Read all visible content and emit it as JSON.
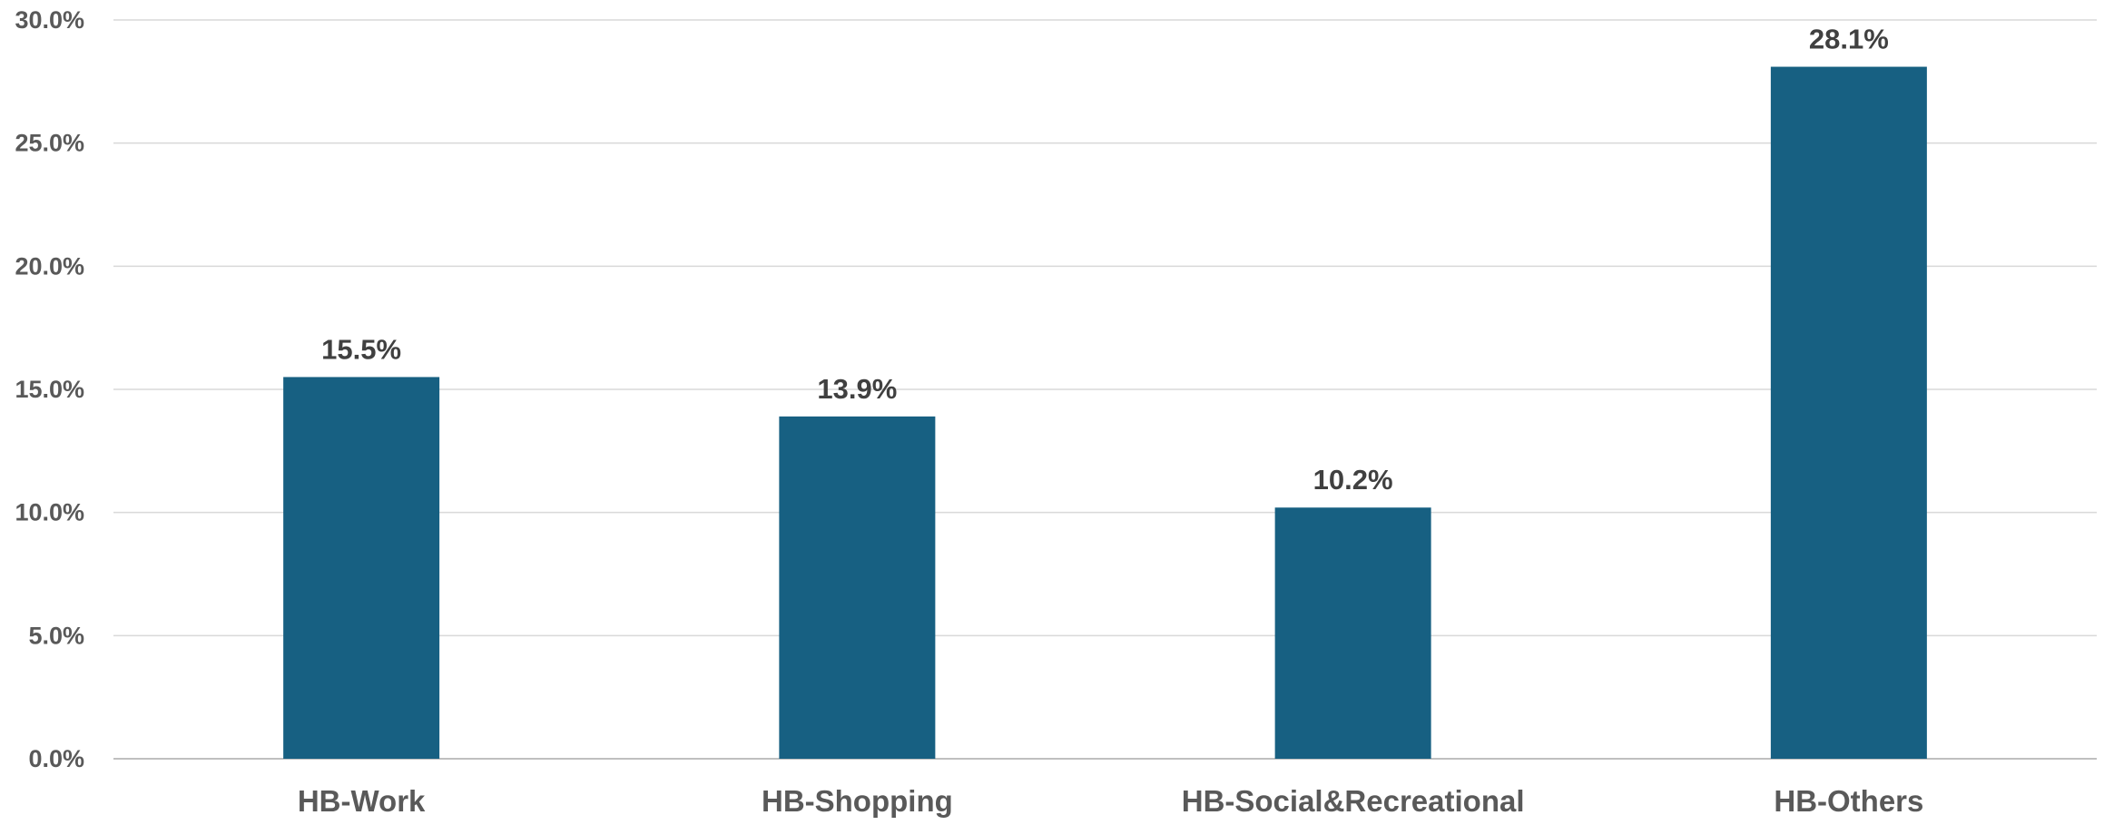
{
  "chart_data": {
    "type": "bar",
    "categories": [
      "HB-Work",
      "HB-Shopping",
      "HB-Social&Recreational",
      "HB-Others"
    ],
    "values": [
      15.5,
      13.9,
      10.2,
      28.1
    ],
    "data_labels": [
      "15.5%",
      "13.9%",
      "10.2%",
      "28.1%"
    ],
    "ylim": [
      0,
      30
    ],
    "y_ticks": [
      0,
      5,
      10,
      15,
      20,
      25,
      30
    ],
    "y_tick_labels": [
      "0.0%",
      "5.0%",
      "10.0%",
      "15.0%",
      "20.0%",
      "25.0%",
      "30.0%"
    ],
    "grid": true,
    "legend": "none",
    "colors": {
      "bar": "#176082",
      "grid": "#d9d9d9",
      "tick_text": "#595959",
      "data_label_text": "#404040"
    }
  }
}
